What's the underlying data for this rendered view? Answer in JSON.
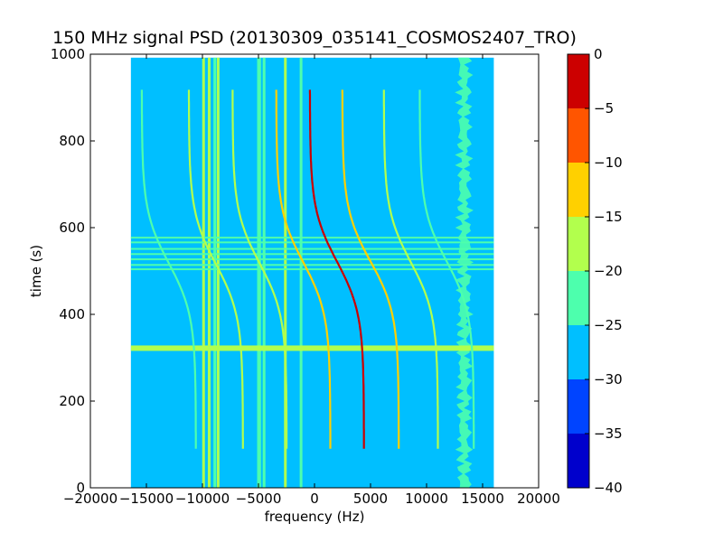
{
  "chart_data": {
    "type": "heatmap",
    "title": "150 MHz signal PSD (20130309_035141_COSMOS2407_TRO)",
    "xlabel": "frequency (Hz)",
    "ylabel": "time (s)",
    "xlim": [
      -20000,
      20000
    ],
    "ylim": [
      0,
      1000
    ],
    "data_extent": {
      "x": [
        -16384,
        16000
      ],
      "y": [
        0,
        992
      ]
    },
    "x_ticks": [
      -20000,
      -15000,
      -10000,
      -5000,
      0,
      5000,
      10000,
      15000,
      20000
    ],
    "x_tick_labels": [
      "−20000",
      "−15000",
      "−10000",
      "−5000",
      "0",
      "5000",
      "10000",
      "15000",
      "20000"
    ],
    "y_ticks": [
      0,
      200,
      400,
      600,
      800,
      1000
    ],
    "y_tick_labels": [
      "0",
      "200",
      "400",
      "600",
      "800",
      "1000"
    ],
    "background_level": -28,
    "colorbar": {
      "levels": [
        -40,
        -35,
        -30,
        -25,
        -20,
        -15,
        -10,
        -5,
        0
      ],
      "tick_labels": [
        "−40",
        "−35",
        "−30",
        "−25",
        "−20",
        "−15",
        "−10",
        "−5",
        "0"
      ],
      "colors": [
        "#0000cc",
        "#0044ff",
        "#00bfff",
        "#4dffad",
        "#b2ff4d",
        "#ffd000",
        "#ff5500",
        "#cc0000"
      ]
    },
    "horizontal_interference": [
      {
        "time": 322,
        "level": -18
      },
      {
        "time": 504,
        "level": -24
      },
      {
        "time": 514,
        "level": -24
      },
      {
        "time": 527,
        "level": -24
      },
      {
        "time": 539,
        "level": -24
      },
      {
        "time": 551,
        "level": -24
      },
      {
        "time": 566,
        "level": -24
      },
      {
        "time": 577,
        "level": -24
      }
    ],
    "vertical_interference": [
      {
        "freq": -9900,
        "level": -20
      },
      {
        "freq": -9400,
        "level": -20
      },
      {
        "freq": -8900,
        "level": -22
      },
      {
        "freq": -8600,
        "level": -20
      },
      {
        "freq": -5000,
        "level": -22
      },
      {
        "freq": -4900,
        "level": -22
      },
      {
        "freq": -4500,
        "level": -22
      },
      {
        "freq": -2600,
        "level": -20
      },
      {
        "freq": -1200,
        "level": -24
      }
    ],
    "doppler_traces": [
      {
        "center_freq": -13000,
        "center_time": 518,
        "span_hz": 4600,
        "level": -22
      },
      {
        "center_freq": -8800,
        "center_time": 516,
        "span_hz": 4600,
        "level": -20
      },
      {
        "center_freq": -4900,
        "center_time": 518,
        "span_hz": 4600,
        "level": -20
      },
      {
        "center_freq": -1000,
        "center_time": 520,
        "span_hz": 4600,
        "level": -15
      },
      {
        "center_freq": 2000,
        "center_time": 522,
        "span_hz": 4600,
        "level": -5
      },
      {
        "center_freq": 5000,
        "center_time": 522,
        "span_hz": 4800,
        "level": -15
      },
      {
        "center_freq": 8600,
        "center_time": 520,
        "span_hz": 4600,
        "level": -20
      },
      {
        "center_freq": 11800,
        "center_time": 522,
        "span_hz": 4600,
        "level": -22
      }
    ],
    "noise_band": {
      "freq_range": [
        11500,
        15000
      ],
      "level": -24
    }
  }
}
